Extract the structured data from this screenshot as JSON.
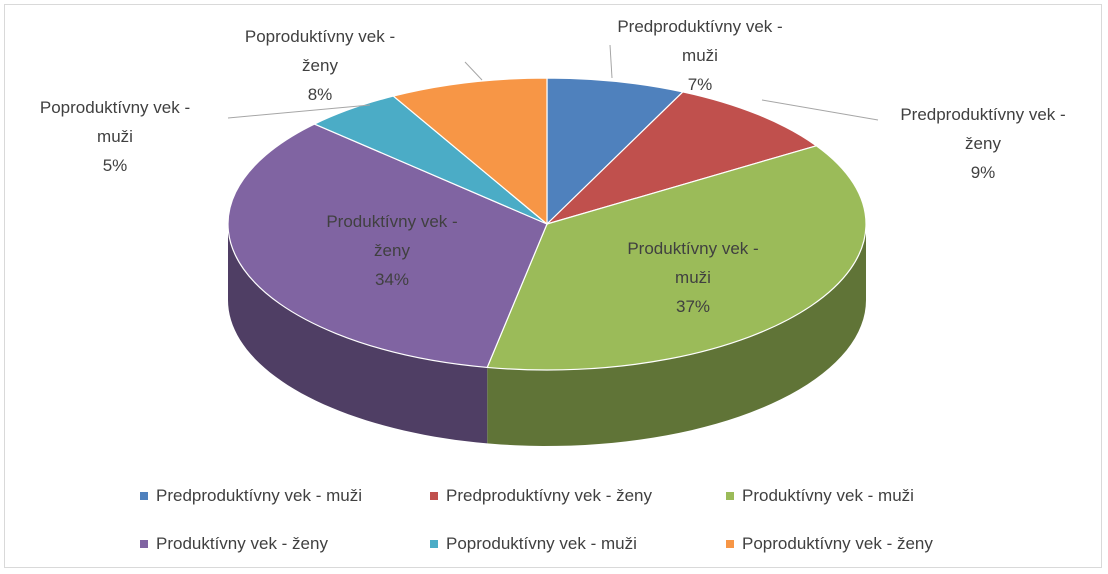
{
  "chart_data": {
    "type": "pie3d",
    "categories": [
      "Predproduktívny vek - muži",
      "Predproduktívny vek - ženy",
      "Produktívny vek - muži",
      "Produktívny vek - ženy",
      "Poproduktívny vek - muži",
      "Poproduktívny vek - ženy"
    ],
    "values": [
      7,
      9,
      37,
      34,
      5,
      8
    ],
    "value_labels": [
      "7%",
      "9%",
      "37%",
      "34%",
      "5%",
      "8%"
    ],
    "colors": [
      "#4f81bd",
      "#c0504d",
      "#9bbb59",
      "#8064a2",
      "#4bacc6",
      "#f79646"
    ],
    "legend": "bottom"
  }
}
